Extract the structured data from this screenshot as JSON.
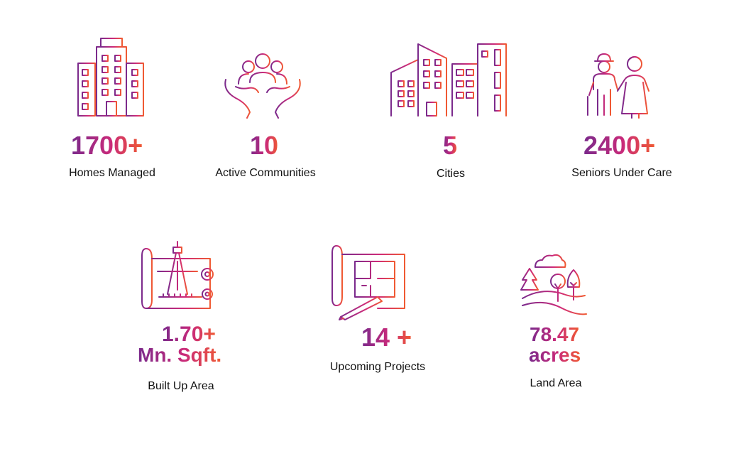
{
  "stats": [
    {
      "value": "1700+",
      "label": "Homes Managed",
      "icon": "apartment-building-icon"
    },
    {
      "value": "10",
      "label": "Active Communities",
      "icon": "community-hands-icon"
    },
    {
      "value": "5",
      "label": "Cities",
      "icon": "city-buildings-icon"
    },
    {
      "value": "2400+",
      "label": "Seniors Under Care",
      "icon": "senior-couple-icon"
    },
    {
      "value_line1": "1.70+",
      "value_line2": "Mn. Sqft.",
      "label": "Built Up Area",
      "icon": "blueprint-compass-icon"
    },
    {
      "value": "14 +",
      "label": "Upcoming Projects",
      "icon": "floor-plan-icon"
    },
    {
      "value_line1": "78.47",
      "value_line2": "acres",
      "label": "Land Area",
      "icon": "landscape-trees-icon"
    }
  ],
  "colors": {
    "gradient_start": "#7a2a8c",
    "gradient_mid": "#c92a7a",
    "gradient_end": "#f05a32",
    "text": "#111111",
    "background": "#ffffff"
  }
}
